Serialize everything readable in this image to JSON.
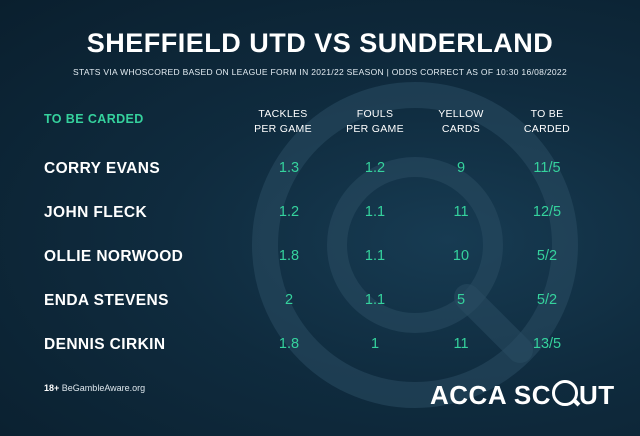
{
  "header": {
    "title": "SHEFFIELD UTD VS SUNDERLAND",
    "subtitle": "STATS VIA WHOSCORED BASED ON LEAGUE FORM IN 2021/22 SEASON | ODDS CORRECT AS OF 10:30 16/08/2022"
  },
  "table": {
    "section_label": "TO BE CARDED",
    "columns": [
      "TACKLES\nPER GAME",
      "FOULS\nPER GAME",
      "YELLOW\nCARDS",
      "TO BE\nCARDED"
    ],
    "rows": [
      {
        "player": "CORRY EVANS",
        "tackles": "1.3",
        "fouls": "1.2",
        "yellows": "9",
        "odds": "11/5"
      },
      {
        "player": "JOHN FLECK",
        "tackles": "1.2",
        "fouls": "1.1",
        "yellows": "11",
        "odds": "12/5"
      },
      {
        "player": "OLLIE NORWOOD",
        "tackles": "1.8",
        "fouls": "1.1",
        "yellows": "10",
        "odds": "5/2"
      },
      {
        "player": "ENDA STEVENS",
        "tackles": "2",
        "fouls": "1.1",
        "yellows": "5",
        "odds": "5/2"
      },
      {
        "player": "DENNIS CIRKIN",
        "tackles": "1.8",
        "fouls": "1",
        "yellows": "11",
        "odds": "13/5"
      }
    ]
  },
  "footer": {
    "age": "18+",
    "gamble_aware": "BeGambleAware.org",
    "brand_left": "ACCA SC",
    "brand_right": "UT"
  },
  "colors": {
    "accent_green": "#35d29d",
    "background": "#0f2b3e"
  },
  "icons": {
    "watermark": "magnifier-icon"
  }
}
